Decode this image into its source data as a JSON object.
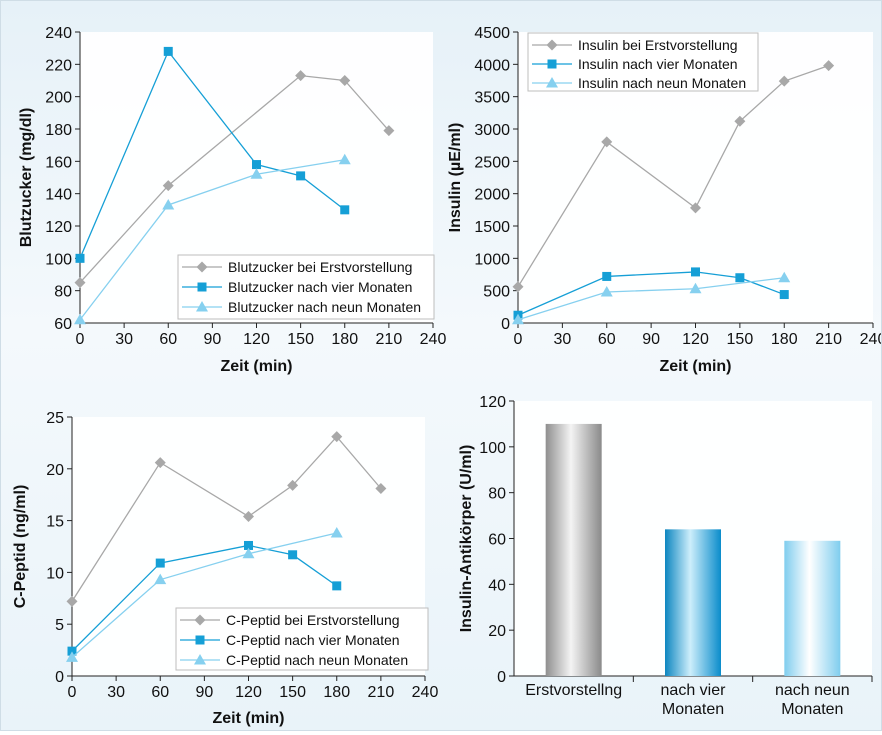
{
  "colors": {
    "gray": "#a8a8a8",
    "blue": "#159fd6",
    "lightblue": "#86d0ef",
    "axis": "#222222",
    "background": "#eaf3f9"
  },
  "chart_data": [
    {
      "type": "line",
      "ylabel": "Blutzucker (mg/dl)",
      "xlabel": "Zeit (min)",
      "xlim": [
        0,
        240
      ],
      "ylim": [
        60,
        240
      ],
      "xticks": [
        0,
        30,
        60,
        90,
        120,
        150,
        180,
        210,
        240
      ],
      "yticks": [
        60,
        80,
        100,
        120,
        140,
        160,
        180,
        200,
        220,
        240
      ],
      "grid": false,
      "legend_position": "bottom-right",
      "series": [
        {
          "name": "Blutzucker bei Erstvorstellung",
          "marker": "diamond",
          "color": "#a8a8a8",
          "points": [
            [
              0,
              85
            ],
            [
              60,
              145
            ],
            [
              150,
              213
            ],
            [
              180,
              210
            ],
            [
              210,
              179
            ]
          ]
        },
        {
          "name": "Blutzucker nach vier Monaten",
          "marker": "square",
          "color": "#159fd6",
          "points": [
            [
              0,
              100
            ],
            [
              60,
              228
            ],
            [
              120,
              158
            ],
            [
              150,
              151
            ],
            [
              180,
              130
            ]
          ]
        },
        {
          "name": "Blutzucker nach neun Monaten",
          "marker": "triangle",
          "color": "#86d0ef",
          "points": [
            [
              0,
              62
            ],
            [
              60,
              133
            ],
            [
              120,
              152
            ],
            [
              180,
              161
            ]
          ]
        }
      ]
    },
    {
      "type": "line",
      "ylabel": "Insulin (µE/ml)",
      "xlabel": "Zeit (min)",
      "xlim": [
        0,
        240
      ],
      "ylim": [
        0,
        4500
      ],
      "xticks": [
        0,
        30,
        60,
        90,
        120,
        150,
        180,
        210,
        240
      ],
      "yticks": [
        0,
        500,
        1000,
        1500,
        2000,
        2500,
        3000,
        3500,
        4000,
        4500
      ],
      "grid": false,
      "legend_position": "top-left",
      "series": [
        {
          "name": "Insulin bei Erstvorstellung",
          "marker": "diamond",
          "color": "#a8a8a8",
          "points": [
            [
              0,
              560
            ],
            [
              60,
              2800
            ],
            [
              120,
              1780
            ],
            [
              150,
              3120
            ],
            [
              180,
              3740
            ],
            [
              210,
              3980
            ]
          ]
        },
        {
          "name": "Insulin nach vier Monaten",
          "marker": "square",
          "color": "#159fd6",
          "points": [
            [
              0,
              120
            ],
            [
              60,
              720
            ],
            [
              120,
              790
            ],
            [
              150,
              700
            ],
            [
              180,
              440
            ]
          ]
        },
        {
          "name": "Insulin nach neun Monaten",
          "marker": "triangle",
          "color": "#86d0ef",
          "points": [
            [
              0,
              50
            ],
            [
              60,
              480
            ],
            [
              120,
              530
            ],
            [
              180,
              700
            ]
          ]
        }
      ]
    },
    {
      "type": "line",
      "ylabel": "C-Peptid (ng/ml)",
      "xlabel": "Zeit (min)",
      "xlim": [
        0,
        240
      ],
      "ylim": [
        0,
        25
      ],
      "xticks": [
        0,
        30,
        60,
        90,
        120,
        150,
        180,
        210,
        240
      ],
      "yticks": [
        0,
        5,
        10,
        15,
        20,
        25
      ],
      "grid": false,
      "legend_position": "bottom-right",
      "series": [
        {
          "name": "C-Peptid bei Erstvorstellung",
          "marker": "diamond",
          "color": "#a8a8a8",
          "points": [
            [
              0,
              7.2
            ],
            [
              60,
              20.6
            ],
            [
              120,
              15.4
            ],
            [
              150,
              18.4
            ],
            [
              180,
              23.1
            ],
            [
              210,
              18.1
            ]
          ]
        },
        {
          "name": "C-Peptid nach vier Monaten",
          "marker": "square",
          "color": "#159fd6",
          "points": [
            [
              0,
              2.4
            ],
            [
              60,
              10.9
            ],
            [
              120,
              12.6
            ],
            [
              150,
              11.7
            ],
            [
              180,
              8.7
            ]
          ]
        },
        {
          "name": "C-Peptid nach neun Monaten",
          "marker": "triangle",
          "color": "#86d0ef",
          "points": [
            [
              0,
              1.8
            ],
            [
              60,
              9.3
            ],
            [
              120,
              11.8
            ],
            [
              180,
              13.8
            ]
          ]
        }
      ]
    },
    {
      "type": "bar",
      "ylabel": "Insulin-Antikörper (U/ml)",
      "xlabel": "",
      "ylim": [
        0,
        120
      ],
      "yticks": [
        0,
        20,
        40,
        60,
        80,
        100,
        120
      ],
      "grid": false,
      "categories": [
        [
          "Erstvorstellng"
        ],
        [
          "nach vier",
          "Monaten"
        ],
        [
          "nach neun",
          "Monaten"
        ]
      ],
      "values": [
        110,
        64,
        59
      ],
      "bar_styles": [
        "gray",
        "blue",
        "lightblue"
      ]
    }
  ]
}
